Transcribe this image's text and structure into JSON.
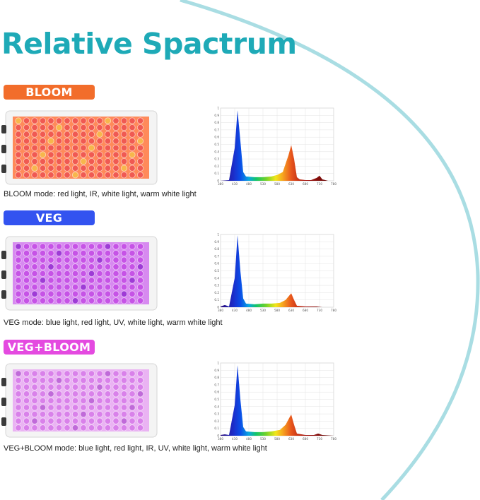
{
  "title": "Relative Spactrum",
  "colors": {
    "title": "#1eaab7",
    "arc": "#a9dde3",
    "bloom_badge": "#f26d2b",
    "veg_badge": "#3353f0",
    "vegbloom_badge": "#e44ae0"
  },
  "modes": [
    {
      "badge": "BLOOM",
      "caption": "BLOOM mode: red light, IR, white light, warm white light",
      "panel": {
        "led_color": "#f05a52",
        "glow": "#ff8a5a",
        "accent": "#f7b64c"
      }
    },
    {
      "badge": "VEG",
      "caption": "VEG mode: blue light, red light, UV, white light, warm white light",
      "panel": {
        "led_color": "#c653e6",
        "glow": "#d78af0",
        "accent": "#9e3bd6"
      }
    },
    {
      "badge": "VEG+BLOOM",
      "caption": "VEG+BLOOM mode: blue light, red light, IR, UV, white light, warm white light",
      "panel": {
        "led_color": "#d981ea",
        "glow": "#eab3f3",
        "accent": "#c06ad9"
      }
    }
  ],
  "chart_data": [
    {
      "type": "area",
      "x": [
        380,
        410,
        430,
        440,
        450,
        460,
        470,
        500,
        530,
        560,
        580,
        600,
        620,
        630,
        640,
        650,
        660,
        680,
        700,
        720,
        730,
        740,
        760,
        780
      ],
      "y": [
        0,
        0.01,
        0.45,
        0.97,
        0.55,
        0.12,
        0.06,
        0.05,
        0.05,
        0.06,
        0.08,
        0.12,
        0.35,
        0.49,
        0.3,
        0.05,
        0.02,
        0.01,
        0.01,
        0.04,
        0.07,
        0.02,
        0,
        0
      ],
      "xticks": [
        "380",
        "430",
        "480",
        "530",
        "580",
        "630",
        "680",
        "730",
        "780"
      ],
      "yticks": [
        "0",
        "0.1",
        "0.2",
        "0.3",
        "0.4",
        "0.5",
        "0.6",
        "0.7",
        "0.8",
        "0.9",
        "1"
      ],
      "xlim": [
        380,
        780
      ],
      "ylim": [
        0,
        1
      ],
      "grid": true
    },
    {
      "type": "area",
      "x": [
        380,
        395,
        410,
        430,
        440,
        450,
        460,
        470,
        500,
        530,
        560,
        590,
        610,
        625,
        630,
        640,
        650,
        680,
        720,
        740,
        780
      ],
      "y": [
        0.01,
        0.03,
        0.01,
        0.4,
        0.99,
        0.5,
        0.12,
        0.05,
        0.04,
        0.05,
        0.05,
        0.06,
        0.1,
        0.17,
        0.19,
        0.1,
        0.02,
        0.01,
        0.01,
        0,
        0
      ],
      "xticks": [
        "380",
        "430",
        "480",
        "530",
        "580",
        "630",
        "680",
        "730",
        "780"
      ],
      "yticks": [
        "0",
        "0.1",
        "0.2",
        "0.3",
        "0.4",
        "0.5",
        "0.6",
        "0.7",
        "0.8",
        "0.9",
        "1"
      ],
      "xlim": [
        380,
        780
      ],
      "ylim": [
        0,
        1
      ],
      "grid": true
    },
    {
      "type": "area",
      "x": [
        380,
        395,
        410,
        430,
        440,
        450,
        460,
        470,
        500,
        530,
        560,
        590,
        610,
        625,
        630,
        640,
        650,
        680,
        710,
        725,
        740,
        780
      ],
      "y": [
        0.01,
        0.02,
        0.01,
        0.42,
        0.97,
        0.5,
        0.12,
        0.06,
        0.05,
        0.05,
        0.06,
        0.08,
        0.15,
        0.26,
        0.29,
        0.15,
        0.03,
        0.01,
        0.01,
        0.03,
        0.01,
        0
      ],
      "xticks": [
        "380",
        "430",
        "480",
        "530",
        "580",
        "630",
        "680",
        "730",
        "780"
      ],
      "yticks": [
        "0",
        "0.1",
        "0.2",
        "0.3",
        "0.4",
        "0.5",
        "0.6",
        "0.7",
        "0.8",
        "0.9",
        "1"
      ],
      "xlim": [
        380,
        780
      ],
      "ylim": [
        0,
        1
      ],
      "grid": true
    }
  ]
}
